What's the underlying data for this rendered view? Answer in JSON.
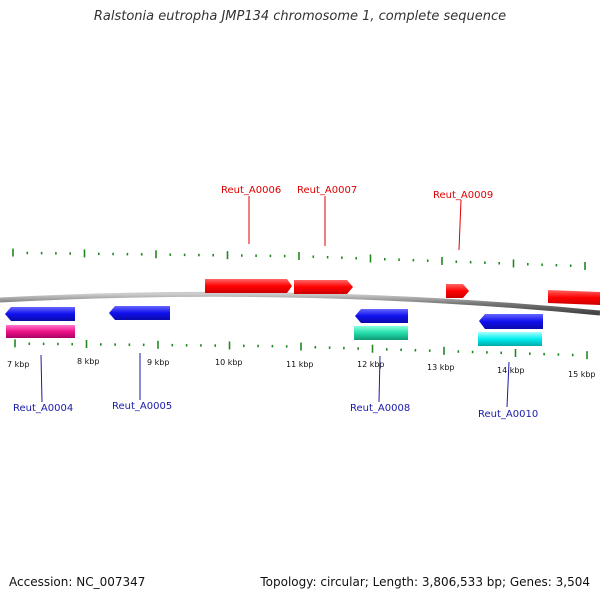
{
  "title": "Ralstonia eutropha JMP134 chromosome 1, complete sequence",
  "footer": {
    "accession": "Accession: NC_007347",
    "summary": "Topology: circular; Length: 3,806,533 bp; Genes: 3,504"
  },
  "scale_labels": [
    "7 kbp",
    "8 kbp",
    "9 kbp",
    "10 kbp",
    "11 kbp",
    "12 kbp",
    "13 kbp",
    "14 kbp",
    "15 kbp"
  ],
  "genes_top": [
    {
      "name": "Reut_A0006",
      "color": "#dd0000"
    },
    {
      "name": "Reut_A0007",
      "color": "#dd0000"
    },
    {
      "name": "Reut_A0009",
      "color": "#dd0000"
    }
  ],
  "genes_bottom": [
    {
      "name": "Reut_A0004",
      "color": "#1a1aaa"
    },
    {
      "name": "Reut_A0005",
      "color": "#1a1aaa"
    },
    {
      "name": "Reut_A0008",
      "color": "#1a1aaa"
    },
    {
      "name": "Reut_A0010",
      "color": "#1a1aaa"
    }
  ],
  "colors": {
    "forward_gene": "#ff0000",
    "reverse_gene": "#1010ee",
    "cds_magenta": "#ee1188",
    "cds_green": "#22ddaa",
    "cds_cyan": "#00eeee",
    "backbone": "#888888",
    "tick": "#228822"
  }
}
